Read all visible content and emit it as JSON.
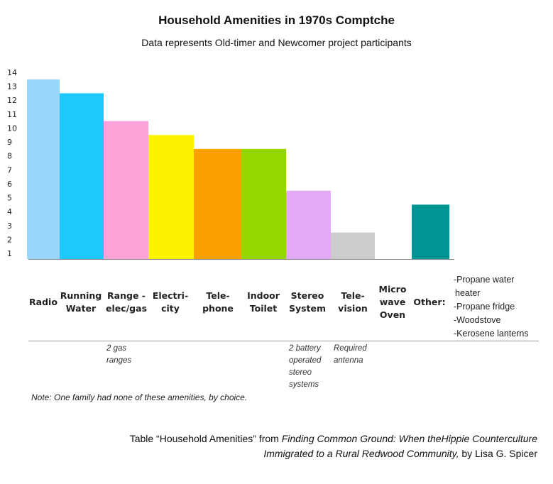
{
  "title": "Household Amenities in 1970s Comptche",
  "subtitle": "Data represents Old-timer and Newcomer project participants",
  "chart_data": {
    "type": "bar",
    "categories": [
      "Radio",
      "Running Water",
      "Range - elec/gas",
      "Electri- city",
      "Tele- phone",
      "Indoor Toilet",
      "Stereo System",
      "Tele- vision",
      "Micro wave Oven",
      "Other:"
    ],
    "category_lines": [
      [
        "Radio"
      ],
      [
        "Running",
        "Water"
      ],
      [
        "Range -",
        "elec/gas"
      ],
      [
        "Electri-",
        "city"
      ],
      [
        "Tele-",
        "phone"
      ],
      [
        "Indoor",
        "Toilet"
      ],
      [
        "Stereo",
        "System"
      ],
      [
        "Tele-",
        "vision"
      ],
      [
        "Micro",
        "wave",
        "Oven"
      ],
      [
        "Other:"
      ]
    ],
    "values": [
      13.5,
      12.5,
      10.5,
      9.5,
      8.5,
      8.5,
      5.5,
      2.5,
      0,
      4.5
    ],
    "colors": [
      "#99d6fb",
      "#1ec8fa",
      "#fca3d9",
      "#fdf300",
      "#fca000",
      "#94d600",
      "#e3a8f8",
      "#cccccc",
      "#ffffff",
      "#009492"
    ],
    "yticks": [
      1,
      2,
      3,
      4,
      5,
      6,
      7,
      8,
      9,
      10,
      11,
      12,
      13,
      14
    ],
    "ylim": [
      0.5,
      14
    ],
    "xlabel": "",
    "ylabel": "",
    "grid": false
  },
  "other_items": [
    "-Propane water",
    "heater",
    "-Propane fridge",
    "-Woodstove",
    "-Kerosene lanterns"
  ],
  "range_note": [
    "2 gas",
    "ranges"
  ],
  "stereo_note": [
    "2 battery",
    "operated",
    "stereo",
    "systems"
  ],
  "tv_note": [
    "Required",
    "antenna"
  ],
  "note": "Note: One family had none of these amenities, by choice.",
  "caption": {
    "line1_prefix": "Table “Household Amenities” from ",
    "line1_italic": "Finding Common Ground: When theHippie Counterculture",
    "line2_italic": "Immigrated to a Rural Redwood Community,",
    "line2_suffix": " by Lisa G. Spicer"
  }
}
